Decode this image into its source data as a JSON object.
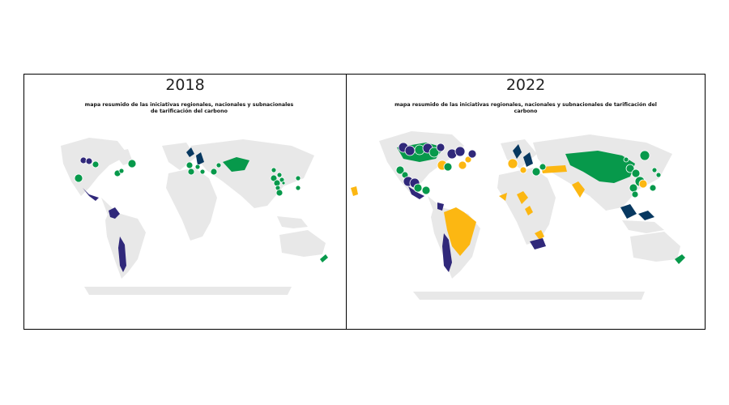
{
  "panels": [
    {
      "year": "2018",
      "subtitle": "mapa resumido de las iniciativas regionales, nacionales y subnacionales de tarificación del carbono"
    },
    {
      "year": "2022",
      "subtitle": "mapa resumido de las iniciativas regionales, nacionales y subnacionales de tarificación del carbono"
    }
  ],
  "colors": {
    "land": "#e8e8e8",
    "ets": "#07994b",
    "tax": "#30287a",
    "both": "#073860",
    "consideration": "#fcb712",
    "hatch": "#1b8e6a"
  }
}
